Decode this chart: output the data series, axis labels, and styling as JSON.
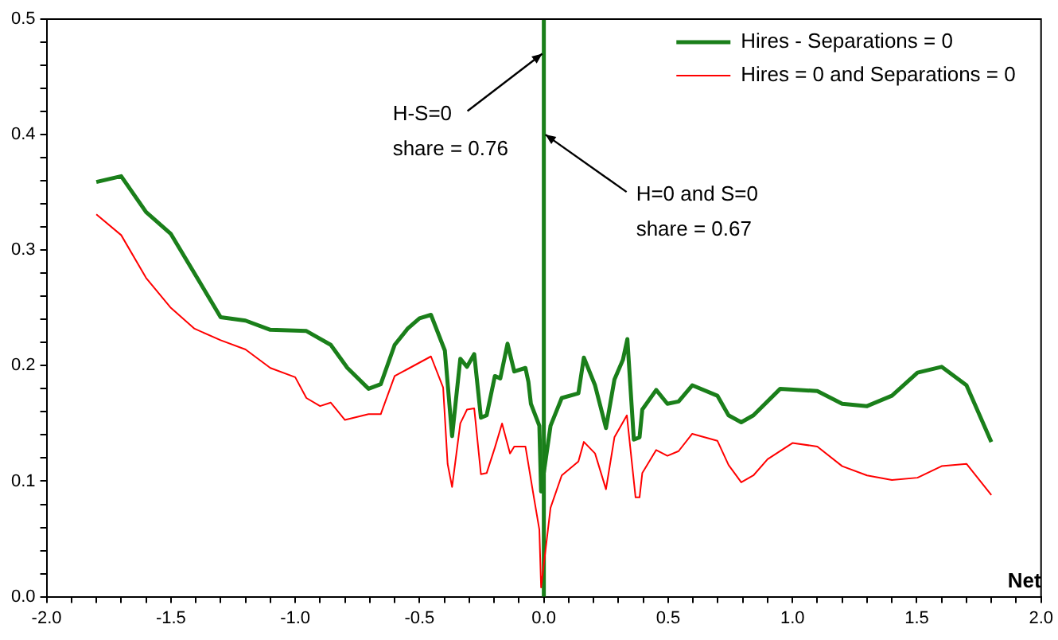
{
  "chart_data": {
    "type": "line",
    "xlabel": "Net",
    "xlim": [
      -2.0,
      2.0
    ],
    "ylim": [
      0,
      0.5
    ],
    "xticks": [
      {
        "value": -2,
        "label": "-2.0"
      },
      {
        "value": -1.9,
        "label": null
      },
      {
        "value": -1.8,
        "label": null
      },
      {
        "value": -1.7,
        "label": null
      },
      {
        "value": -1.6,
        "label": null
      },
      {
        "value": -1.5,
        "label": "-1.5"
      },
      {
        "value": -1.4,
        "label": null
      },
      {
        "value": -1.3,
        "label": null
      },
      {
        "value": -1.2,
        "label": null
      },
      {
        "value": -1.1,
        "label": null
      },
      {
        "value": -1,
        "label": "-1.0"
      },
      {
        "value": -0.9,
        "label": null
      },
      {
        "value": -0.8,
        "label": null
      },
      {
        "value": -0.7,
        "label": null
      },
      {
        "value": -0.6,
        "label": null
      },
      {
        "value": -0.5,
        "label": "-0.5"
      },
      {
        "value": -0.4,
        "label": null
      },
      {
        "value": -0.3,
        "label": null
      },
      {
        "value": -0.2,
        "label": null
      },
      {
        "value": -0.1,
        "label": null
      },
      {
        "value": 0,
        "label": "0.0"
      },
      {
        "value": 0.1,
        "label": null
      },
      {
        "value": 0.2,
        "label": null
      },
      {
        "value": 0.3,
        "label": null
      },
      {
        "value": 0.4,
        "label": null
      },
      {
        "value": 0.5,
        "label": "0.5"
      },
      {
        "value": 0.6,
        "label": null
      },
      {
        "value": 0.7,
        "label": null
      },
      {
        "value": 0.8,
        "label": null
      },
      {
        "value": 0.9,
        "label": null
      },
      {
        "value": 1,
        "label": "1.0"
      },
      {
        "value": 1.1,
        "label": null
      },
      {
        "value": 1.2,
        "label": null
      },
      {
        "value": 1.3,
        "label": null
      },
      {
        "value": 1.4,
        "label": null
      },
      {
        "value": 1.5,
        "label": "1.5"
      },
      {
        "value": 1.6,
        "label": null
      },
      {
        "value": 1.7,
        "label": null
      },
      {
        "value": 1.8,
        "label": null
      },
      {
        "value": 1.9,
        "label": null
      },
      {
        "value": 2,
        "label": "2.0"
      }
    ],
    "yticks": [
      {
        "value": 0,
        "label": "0.0"
      },
      {
        "value": 0.02,
        "label": null
      },
      {
        "value": 0.04,
        "label": null
      },
      {
        "value": 0.06,
        "label": null
      },
      {
        "value": 0.08,
        "label": null
      },
      {
        "value": 0.1,
        "label": "0.1"
      },
      {
        "value": 0.12,
        "label": null
      },
      {
        "value": 0.14,
        "label": null
      },
      {
        "value": 0.16,
        "label": null
      },
      {
        "value": 0.18,
        "label": null
      },
      {
        "value": 0.2,
        "label": "0.2"
      },
      {
        "value": 0.22,
        "label": null
      },
      {
        "value": 0.24,
        "label": null
      },
      {
        "value": 0.26,
        "label": null
      },
      {
        "value": 0.28,
        "label": null
      },
      {
        "value": 0.3,
        "label": "0.3"
      },
      {
        "value": 0.32,
        "label": null
      },
      {
        "value": 0.34,
        "label": null
      },
      {
        "value": 0.36,
        "label": null
      },
      {
        "value": 0.38,
        "label": null
      },
      {
        "value": 0.4,
        "label": "0.4"
      },
      {
        "value": 0.42,
        "label": null
      },
      {
        "value": 0.44,
        "label": null
      },
      {
        "value": 0.46,
        "label": null
      },
      {
        "value": 0.48,
        "label": null
      },
      {
        "value": 0.5,
        "label": "0.5"
      }
    ],
    "grid": false,
    "legend": "top right",
    "marker": "none",
    "line_style": "solid",
    "annotations": [
      {
        "text": "H-S=0\nshare = 0.76",
        "x": 0,
        "y": 0.47
      },
      {
        "text": "H=0 and S=0\nshare = 0.67",
        "x": 0,
        "y": 0.4
      }
    ],
    "ref_lines": [
      {
        "axis": "x",
        "value": 0,
        "color": "#1a7f1a",
        "line_style": "solid"
      }
    ],
    "series": [
      {
        "name": "Hires - Separations = 0",
        "color": "#1a7f1a",
        "x": [
          -1.8,
          -1.7,
          -1.6,
          -1.5,
          -1.3,
          -1.2,
          -1.1,
          -0.955,
          -0.857,
          -0.79,
          -0.705,
          -0.656,
          -0.6,
          -0.548,
          -0.5,
          -0.454,
          -0.398,
          -0.369,
          -0.336,
          -0.309,
          -0.28,
          -0.253,
          -0.23,
          -0.197,
          -0.175,
          -0.146,
          -0.119,
          -0.074,
          -0.062,
          -0.052,
          -0.018,
          -0.011,
          0.027,
          0.072,
          0.139,
          0.161,
          0.206,
          0.25,
          0.284,
          0.318,
          0.336,
          0.362,
          0.385,
          0.396,
          0.452,
          0.497,
          0.542,
          0.597,
          0.698,
          0.743,
          0.794,
          0.843,
          0.951,
          1.1,
          1.2,
          1.3,
          1.4,
          1.503,
          1.6,
          1.7,
          1.8
        ],
        "values": [
          0.359,
          0.364,
          0.333,
          0.314,
          0.242,
          0.239,
          0.231,
          0.23,
          0.218,
          0.198,
          0.18,
          0.184,
          0.218,
          0.232,
          0.241,
          0.244,
          0.213,
          0.139,
          0.206,
          0.199,
          0.21,
          0.155,
          0.157,
          0.191,
          0.189,
          0.219,
          0.195,
          0.198,
          0.186,
          0.167,
          0.148,
          0.091,
          0.148,
          0.172,
          0.176,
          0.207,
          0.183,
          0.146,
          0.188,
          0.205,
          0.223,
          0.136,
          0.138,
          0.162,
          0.179,
          0.167,
          0.169,
          0.183,
          0.174,
          0.157,
          0.151,
          0.157,
          0.18,
          0.178,
          0.167,
          0.165,
          0.174,
          0.194,
          0.199,
          0.183,
          0.134
        ]
      },
      {
        "name": "Hires = 0 and Separations = 0",
        "color": "#ff0000",
        "x": [
          -1.8,
          -1.7,
          -1.6,
          -1.5,
          -1.405,
          -1.3,
          -1.2,
          -1.1,
          -1.0,
          -0.955,
          -0.9,
          -0.857,
          -0.8,
          -0.705,
          -0.656,
          -0.6,
          -0.454,
          -0.405,
          -0.387,
          -0.369,
          -0.336,
          -0.309,
          -0.28,
          -0.253,
          -0.23,
          -0.197,
          -0.168,
          -0.136,
          -0.119,
          -0.074,
          -0.04,
          -0.018,
          -0.011,
          0.027,
          0.072,
          0.139,
          0.161,
          0.206,
          0.25,
          0.284,
          0.334,
          0.369,
          0.385,
          0.396,
          0.452,
          0.497,
          0.542,
          0.597,
          0.698,
          0.743,
          0.794,
          0.843,
          0.9,
          1.0,
          1.1,
          1.2,
          1.3,
          1.4,
          1.503,
          1.6,
          1.7,
          1.8
        ],
        "values": [
          0.331,
          0.313,
          0.276,
          0.25,
          0.232,
          0.222,
          0.214,
          0.198,
          0.19,
          0.172,
          0.165,
          0.168,
          0.153,
          0.158,
          0.158,
          0.191,
          0.208,
          0.181,
          0.115,
          0.095,
          0.15,
          0.162,
          0.163,
          0.106,
          0.107,
          0.129,
          0.15,
          0.124,
          0.13,
          0.13,
          0.086,
          0.058,
          0.008,
          0.077,
          0.105,
          0.117,
          0.134,
          0.124,
          0.093,
          0.138,
          0.157,
          0.086,
          0.086,
          0.107,
          0.127,
          0.122,
          0.126,
          0.141,
          0.135,
          0.114,
          0.099,
          0.105,
          0.119,
          0.133,
          0.13,
          0.113,
          0.105,
          0.101,
          0.103,
          0.113,
          0.115,
          0.088
        ]
      }
    ]
  }
}
